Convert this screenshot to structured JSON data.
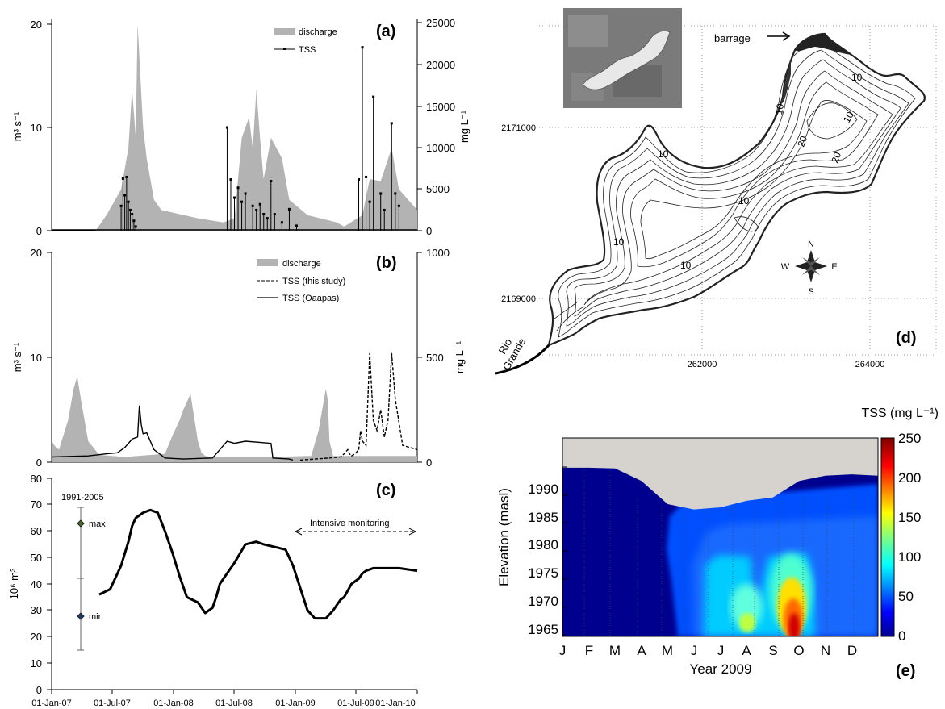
{
  "chart_data": [
    {
      "panel": "(a)",
      "type": "line",
      "xlim": [
        "01-Jan-07",
        "01-Jan-10"
      ],
      "ylim_left": [
        0,
        20
      ],
      "ylim_right": [
        0,
        25000
      ],
      "ylabel_left": "m³ s⁻¹",
      "ylabel_right": "mg L⁻¹",
      "yticks_left": [
        "0",
        "10",
        "20"
      ],
      "yticks_right": [
        "0",
        "5000",
        "10000",
        "15000",
        "20000",
        "25000"
      ],
      "legend": [
        "discharge",
        "TSS"
      ],
      "legend_placement": "top-right",
      "series": [
        {
          "name": "discharge",
          "kind": "area",
          "color": "#b3b3b3",
          "x": [
            0,
            0.12,
            0.15,
            0.19,
            0.21,
            0.22,
            0.23,
            0.235,
            0.25,
            0.26,
            0.27,
            0.28,
            0.3,
            0.4,
            0.47,
            0.5,
            0.515,
            0.52,
            0.54,
            0.55,
            0.56,
            0.57,
            0.58,
            0.6,
            0.63,
            0.65,
            0.7,
            0.78,
            0.8,
            0.85,
            0.87,
            0.9,
            0.93,
            0.95,
            1.0
          ],
          "values": [
            0,
            0,
            1.5,
            4,
            8,
            13.7,
            9,
            20,
            10,
            7,
            5,
            3,
            2,
            1.2,
            0.8,
            1.2,
            7,
            9,
            11,
            8,
            13.7,
            9,
            5,
            9,
            7,
            3,
            1.5,
            0.8,
            0.4,
            1.5,
            5,
            4.8,
            8,
            4,
            2
          ]
        },
        {
          "name": "TSS",
          "kind": "line",
          "color": "#000000",
          "x": [
            0.19,
            0.195,
            0.2,
            0.205,
            0.21,
            0.215,
            0.22,
            0.225,
            0.23,
            0.48,
            0.49,
            0.5,
            0.51,
            0.52,
            0.53,
            0.55,
            0.56,
            0.57,
            0.58,
            0.59,
            0.6,
            0.61,
            0.63,
            0.65,
            0.67,
            0.84,
            0.85,
            0.86,
            0.87,
            0.88,
            0.9,
            0.91,
            0.93,
            0.94,
            0.95
          ],
          "values": [
            3000,
            6300,
            4300,
            6500,
            3500,
            2500,
            2000,
            1200,
            500,
            12500,
            6200,
            4000,
            5200,
            3500,
            4500,
            3000,
            2500,
            3200,
            2000,
            1500,
            6000,
            2000,
            1000,
            2600,
            600,
            6200,
            22200,
            6500,
            3500,
            16200,
            4500,
            2500,
            13000,
            4500,
            3000
          ]
        }
      ]
    },
    {
      "panel": "(b)",
      "type": "line",
      "xlim": [
        "01-Jan-07",
        "01-Jan-10"
      ],
      "ylim_left": [
        0,
        20
      ],
      "ylim_right": [
        0,
        1000
      ],
      "ylabel_left": "m³ s⁻¹",
      "ylabel_right": "mg L⁻¹",
      "yticks_left": [
        "0",
        "10",
        "20"
      ],
      "yticks_right": [
        "0",
        "500",
        "1000"
      ],
      "legend": [
        "discharge",
        "TSS (this study)",
        "TSS (Oaapas)"
      ],
      "legend_placement": "top-right",
      "series": [
        {
          "name": "discharge",
          "kind": "area",
          "color": "#b3b3b3",
          "x": [
            0.0,
            0.01,
            0.02,
            0.045,
            0.06,
            0.07,
            0.08,
            0.1,
            0.13,
            0.2,
            0.31,
            0.33,
            0.35,
            0.36,
            0.38,
            0.4,
            0.41,
            0.42,
            0.44,
            0.6,
            0.71,
            0.73,
            0.75,
            0.755,
            0.76,
            0.77,
            1.0
          ],
          "values": [
            2,
            1.5,
            1.2,
            4,
            7,
            8.2,
            6,
            2,
            0.7,
            0.5,
            0.8,
            2.5,
            4,
            5,
            6.5,
            2,
            0.9,
            0.6,
            0.5,
            0.5,
            0.6,
            3,
            7,
            6,
            2,
            0.6,
            0.6
          ]
        },
        {
          "name": "TSS (Oaapas)",
          "kind": "line",
          "color": "#000000",
          "x": [
            0.0,
            0.1,
            0.15,
            0.18,
            0.2,
            0.22,
            0.235,
            0.24,
            0.245,
            0.25,
            0.26,
            0.28,
            0.31,
            0.36,
            0.44,
            0.46,
            0.48,
            0.5,
            0.53,
            0.6,
            0.605,
            0.65,
            0.66
          ],
          "values": [
            25,
            30,
            40,
            45,
            70,
            110,
            120,
            270,
            180,
            135,
            140,
            60,
            20,
            15,
            20,
            60,
            100,
            90,
            100,
            90,
            20,
            15,
            10
          ]
        },
        {
          "name": "TSS (this study)",
          "kind": "line",
          "dash": "4,2",
          "color": "#000000",
          "x": [
            0.68,
            0.72,
            0.76,
            0.79,
            0.8,
            0.81,
            0.815,
            0.82,
            0.83,
            0.84,
            0.845,
            0.85,
            0.86,
            0.87,
            0.88,
            0.89,
            0.9,
            0.91,
            0.92,
            0.93,
            0.94,
            0.96,
            0.98,
            1.0
          ],
          "values": [
            10,
            15,
            20,
            25,
            40,
            60,
            40,
            30,
            40,
            60,
            150,
            100,
            80,
            520,
            200,
            150,
            250,
            120,
            200,
            520,
            300,
            80,
            70,
            60
          ]
        }
      ]
    },
    {
      "panel": "(c)",
      "type": "line",
      "xlim": [
        "01-Jan-07",
        "01-Jan-10"
      ],
      "ylim": [
        0,
        80
      ],
      "ylabel": "10⁶ m³",
      "xticks": [
        "01-Jan-07",
        "01-Jul-07",
        "01-Jan-08",
        "01-Jul-08",
        "01-Jan-09",
        "01-Jul-09",
        "01-Jan-10"
      ],
      "yticks": [
        "0",
        "10",
        "20",
        "30",
        "40",
        "50",
        "60",
        "70",
        "80"
      ],
      "reference": {
        "label": "1991-2005",
        "max": 63,
        "min": 28,
        "range": [
          15,
          69
        ],
        "max_label": "max",
        "min_label": "min"
      },
      "annotation": "Intensive monitoring",
      "series": [
        {
          "name": "storage",
          "x": [
            0.13,
            0.16,
            0.19,
            0.21,
            0.22,
            0.23,
            0.25,
            0.27,
            0.29,
            0.31,
            0.33,
            0.35,
            0.37,
            0.4,
            0.42,
            0.44,
            0.45,
            0.46,
            0.48,
            0.5,
            0.53,
            0.56,
            0.58,
            0.61,
            0.64,
            0.66,
            0.7,
            0.72,
            0.75,
            0.77,
            0.78,
            0.79,
            0.8,
            0.82,
            0.84,
            0.85,
            0.86,
            0.88,
            0.89,
            0.9,
            0.92,
            0.95,
            1.0
          ],
          "values": [
            36,
            38,
            47,
            56,
            62,
            65,
            67,
            68,
            67,
            60,
            52,
            43,
            35,
            33,
            29,
            31,
            35,
            40,
            44,
            48,
            55,
            56,
            55,
            54,
            53,
            47,
            30,
            27,
            27,
            30,
            32,
            34,
            35,
            40,
            42,
            44,
            45,
            46,
            46,
            46,
            46,
            46,
            45
          ]
        }
      ]
    },
    {
      "panel": "(d)",
      "type": "map",
      "xticks": [
        "262000",
        "264000"
      ],
      "yticks": [
        "2171000",
        "2169000"
      ],
      "labels": [
        "barrage",
        "Rio",
        "Grande"
      ],
      "contour_labels": [
        "10",
        "10",
        "10",
        "10",
        "10",
        "20",
        "20",
        "10",
        "10"
      ],
      "compass": [
        "N",
        "S",
        "E",
        "W"
      ]
    },
    {
      "panel": "(e)",
      "type": "heatmap",
      "title": "Year 2009",
      "xlabel": "Year 2009",
      "ylabel": "Elevation (masl)",
      "months": [
        "J",
        "F",
        "M",
        "A",
        "M",
        "J",
        "J",
        "A",
        "S",
        "O",
        "N",
        "D"
      ],
      "yticks": [
        "1965",
        "1970",
        "1975",
        "1980",
        "1985",
        "1990"
      ],
      "ylim": [
        1964,
        1994
      ],
      "colorbar": {
        "title": "TSS (mg L⁻¹)",
        "ticks": [
          "0",
          "50",
          "100",
          "150",
          "200",
          "250"
        ],
        "range": [
          0,
          250
        ]
      },
      "surface": [
        1989.5,
        1989.5,
        1989.4,
        1987.5,
        1984,
        1983.2,
        1983.5,
        1984.5,
        1985,
        1987.5,
        1988.3,
        1988.5,
        1988.3
      ],
      "tss_max": {
        "month": "O",
        "elevation": 1966,
        "value": 250
      }
    }
  ],
  "colors": {
    "discharge": "#b3b3b3",
    "line": "#000000",
    "sky": "#d6d2cd"
  }
}
